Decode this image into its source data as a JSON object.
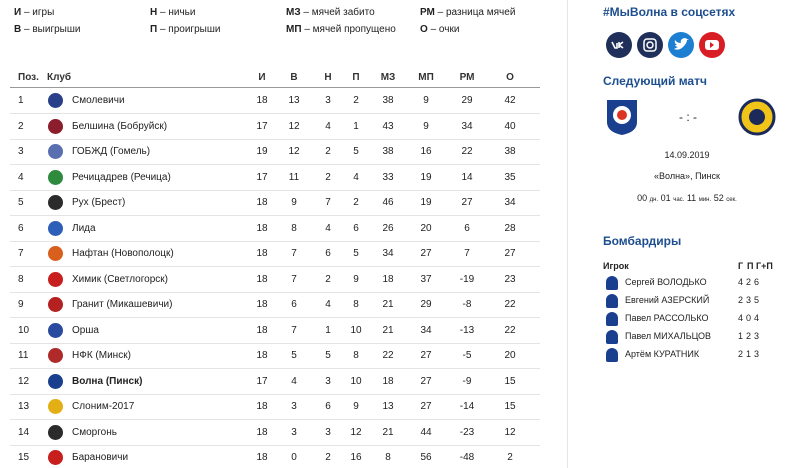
{
  "legend": [
    {
      "abbr": "И",
      "text": "– игры"
    },
    {
      "abbr": "Н",
      "text": "– ничьи"
    },
    {
      "abbr": "МЗ",
      "text": "– мячей забито"
    },
    {
      "abbr": "РМ",
      "text": "– разница мячей"
    },
    {
      "abbr": "В",
      "text": "– выигрыши"
    },
    {
      "abbr": "П",
      "text": "– проигрыши"
    },
    {
      "abbr": "МП",
      "text": "– мячей пропущено"
    },
    {
      "abbr": "О",
      "text": "– очки"
    }
  ],
  "table": {
    "columns": [
      "Поз.",
      "Клуб",
      "И",
      "В",
      "Н",
      "П",
      "МЗ",
      "МП",
      "РМ",
      "О"
    ],
    "rows": [
      {
        "pos": 1,
        "club": "Смолевичи",
        "stats": [
          18,
          13,
          3,
          2,
          38,
          9,
          29,
          42
        ]
      },
      {
        "pos": 2,
        "club": "Белшина (Бобруйск)",
        "stats": [
          17,
          12,
          4,
          1,
          43,
          9,
          34,
          40
        ]
      },
      {
        "pos": 3,
        "club": "ГОБЖД (Гомель)",
        "stats": [
          19,
          12,
          2,
          5,
          38,
          16,
          22,
          38
        ]
      },
      {
        "pos": 4,
        "club": "Речицадрев (Речица)",
        "stats": [
          17,
          11,
          2,
          4,
          33,
          19,
          14,
          35
        ]
      },
      {
        "pos": 5,
        "club": "Рух (Брест)",
        "stats": [
          18,
          9,
          7,
          2,
          46,
          19,
          27,
          34
        ]
      },
      {
        "pos": 6,
        "club": "Лида",
        "stats": [
          18,
          8,
          4,
          6,
          26,
          20,
          6,
          28
        ]
      },
      {
        "pos": 7,
        "club": "Нафтан (Новополоцк)",
        "stats": [
          18,
          7,
          6,
          5,
          34,
          27,
          7,
          27
        ]
      },
      {
        "pos": 8,
        "club": "Химик (Светлогорск)",
        "stats": [
          18,
          7,
          2,
          9,
          18,
          37,
          -19,
          23
        ]
      },
      {
        "pos": 9,
        "club": "Гранит (Микашевичи)",
        "stats": [
          18,
          6,
          4,
          8,
          21,
          29,
          -8,
          22
        ]
      },
      {
        "pos": 10,
        "club": "Орша",
        "stats": [
          18,
          7,
          1,
          10,
          21,
          34,
          -13,
          22
        ]
      },
      {
        "pos": 11,
        "club": "НФК (Минск)",
        "stats": [
          18,
          5,
          5,
          8,
          22,
          27,
          -5,
          20
        ]
      },
      {
        "pos": 12,
        "club": "Волна (Пинск)",
        "stats": [
          17,
          4,
          3,
          10,
          18,
          27,
          -9,
          15
        ],
        "highlight": true
      },
      {
        "pos": 13,
        "club": "Слоним-2017",
        "stats": [
          18,
          3,
          6,
          9,
          13,
          27,
          -14,
          15
        ]
      },
      {
        "pos": 14,
        "club": "Сморгонь",
        "stats": [
          18,
          3,
          3,
          12,
          21,
          44,
          -23,
          12
        ]
      },
      {
        "pos": 15,
        "club": "Барановичи",
        "stats": [
          18,
          0,
          2,
          16,
          8,
          56,
          -48,
          2
        ]
      }
    ]
  },
  "social": {
    "title": "#МыВолна в соцсетях"
  },
  "next_match": {
    "title": "Следующий матч",
    "score": "- : -",
    "date": "14.09.2019",
    "venue": "«Волна», Пинск",
    "countdown": [
      {
        "value": "00",
        "unit": "дн."
      },
      {
        "value": "01",
        "unit": "час."
      },
      {
        "value": "11",
        "unit": "мин."
      },
      {
        "value": "52",
        "unit": "сек."
      }
    ]
  },
  "scorers": {
    "title": "Бомбардиры",
    "columns": [
      "Игрок",
      "Г",
      "П",
      "Г+П"
    ],
    "rows": [
      {
        "name": "Сергей ВОЛОДЬКО",
        "stats": [
          4,
          2,
          6
        ]
      },
      {
        "name": "Евгений АЗЕРСКИЙ",
        "stats": [
          2,
          3,
          5
        ]
      },
      {
        "name": "Павел РАССОЛЬКО",
        "stats": [
          4,
          0,
          4
        ]
      },
      {
        "name": "Павел МИХАЛЬЦОВ",
        "stats": [
          1,
          2,
          3
        ]
      },
      {
        "name": "Артём КУРАТНИК",
        "stats": [
          2,
          1,
          3
        ]
      }
    ]
  }
}
